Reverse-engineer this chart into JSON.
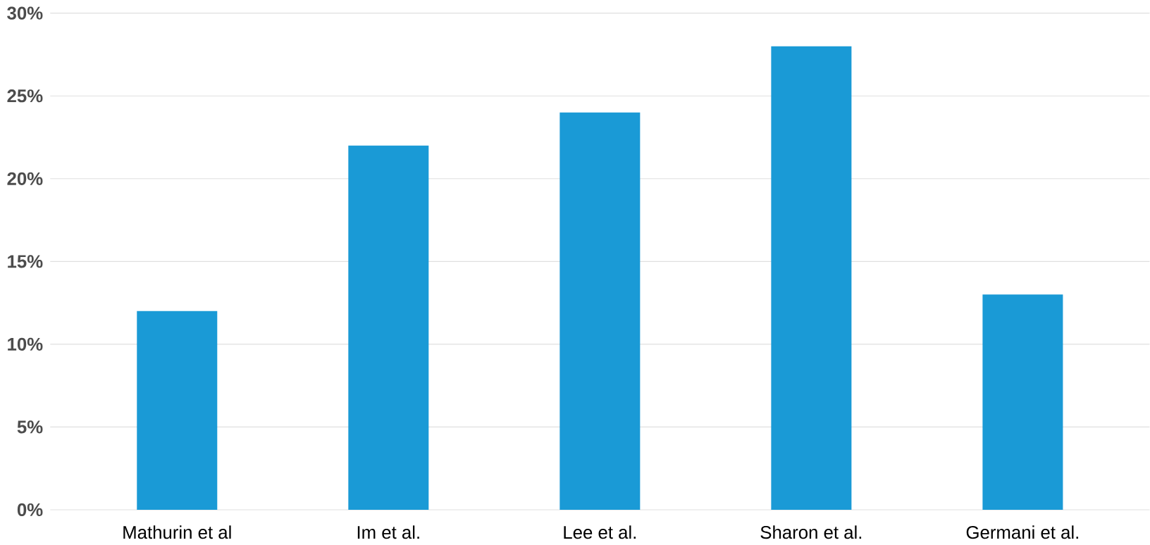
{
  "chart_data": {
    "type": "bar",
    "categories": [
      "Mathurin et al",
      "Im et al.",
      "Lee et al.",
      "Sharon et al.",
      "Germani et al."
    ],
    "values": [
      12,
      22,
      24,
      28,
      13
    ],
    "color": "#1a9ad6",
    "ylim": [
      0,
      30
    ],
    "yticks": [
      {
        "value": 0,
        "label": "0%"
      },
      {
        "value": 5,
        "label": "5%"
      },
      {
        "value": 10,
        "label": "10%"
      },
      {
        "value": 15,
        "label": "15%"
      },
      {
        "value": 20,
        "label": "20%"
      },
      {
        "value": 25,
        "label": "25%"
      },
      {
        "value": 30,
        "label": "30%"
      }
    ],
    "grid": "y"
  }
}
